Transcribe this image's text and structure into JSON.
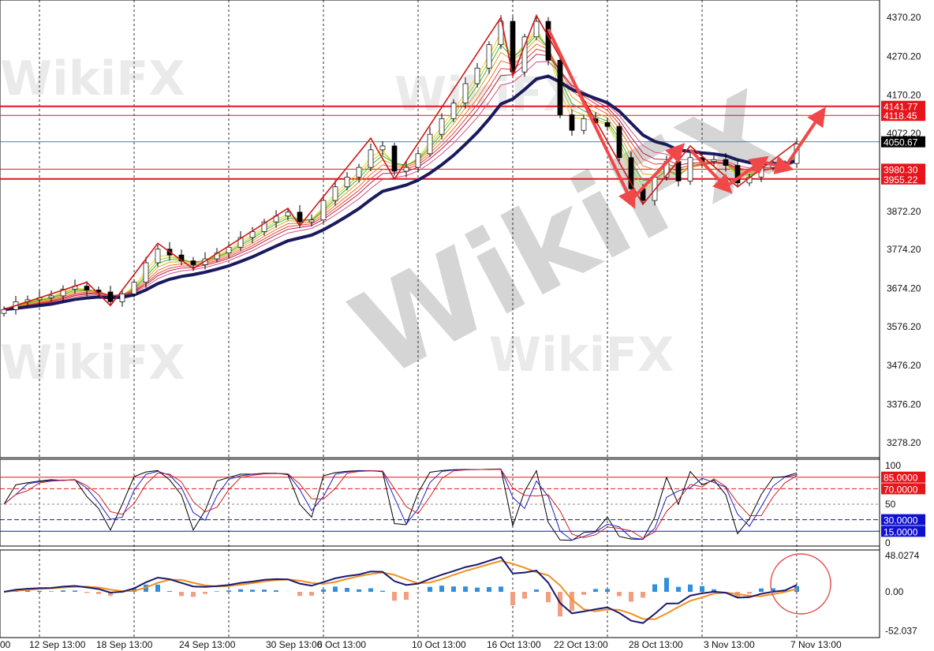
{
  "watermark": "WikiFX",
  "chart_data": [
    {
      "type": "candlestick",
      "panel": "price",
      "yticks": [
        "4370.20",
        "4270.20",
        "4170.20",
        "4072.20",
        "3872.20",
        "3774.20",
        "3674.20",
        "3576.20",
        "3476.20",
        "3376.20",
        "3278.20"
      ],
      "xticks": [
        "12 Sep 13:00",
        "18 Sep 13:00",
        "24 Sep 13:00",
        "30 Sep 13:00",
        "6 Oct 13:00",
        "10 Oct 13:00",
        "16 Oct 13:00",
        "22 Oct 13:00",
        "28 Oct 13:00",
        "3 Nov 13:00",
        "7 Nov 13:00"
      ],
      "close": [
        3620,
        3640,
        3645,
        3650,
        3655,
        3672,
        3680,
        3670,
        3665,
        3640,
        3660,
        3690,
        3740,
        3775,
        3760,
        3745,
        3735,
        3750,
        3765,
        3780,
        3805,
        3820,
        3845,
        3860,
        3870,
        3845,
        3850,
        3900,
        3935,
        3960,
        3985,
        4030,
        4040,
        3975,
        3985,
        4020,
        4070,
        4110,
        4150,
        4200,
        4240,
        4300,
        4360,
        4230,
        4320,
        4360,
        4260,
        4120,
        4080,
        4110,
        4100,
        4090,
        4010,
        3930,
        3900,
        3960,
        4000,
        3950,
        4010,
        4000,
        4005,
        3990,
        3945,
        3960,
        3985,
        3990,
        3995,
        4045
      ],
      "levels": [
        {
          "label": "4141.77",
          "value": 4141.77,
          "color": "#e8141c"
        },
        {
          "label": "4118.45",
          "value": 4118.45,
          "color": "#e8141c"
        },
        {
          "label": "3980.30",
          "value": 3980.3,
          "color": "#e8141c"
        },
        {
          "label": "3955.22",
          "value": 3955.22,
          "color": "#e8141c"
        }
      ],
      "current": {
        "label": "4050.67",
        "value": 4050.67,
        "color": "#000000"
      },
      "zigzag": [
        [
          0,
          3620
        ],
        [
          7,
          3690
        ],
        [
          9,
          3630
        ],
        [
          13,
          3790
        ],
        [
          16,
          3725
        ],
        [
          24,
          3880
        ],
        [
          25,
          3835
        ],
        [
          31,
          4060
        ],
        [
          33,
          3955
        ],
        [
          42,
          4370
        ],
        [
          43,
          4220
        ],
        [
          45,
          4375
        ],
        [
          54,
          3890
        ],
        [
          58,
          4040
        ],
        [
          62,
          3935
        ],
        [
          67,
          4050
        ]
      ],
      "arrows": [
        [
          [
            46,
            4340
          ],
          [
            53,
            3900
          ]
        ],
        [
          [
            53,
            3900
          ],
          [
            57,
            4030
          ]
        ],
        [
          [
            58,
            4030
          ],
          [
            61,
            3935
          ]
        ],
        [
          [
            61,
            3935
          ],
          [
            64,
            4000
          ]
        ],
        [
          [
            64,
            4000
          ],
          [
            66,
            3985
          ]
        ],
        [
          [
            66,
            3985
          ],
          [
            69,
            4120
          ]
        ]
      ]
    },
    {
      "type": "line",
      "panel": "stochastic",
      "ylim": [
        0,
        100
      ],
      "yticks": [
        "100",
        "50",
        "0"
      ],
      "levels": [
        {
          "label": "85.0000",
          "value": 85,
          "color": "#e8141c"
        },
        {
          "label": "70.0000",
          "value": 70,
          "color": "#e8141c"
        },
        {
          "label": "30.0000",
          "value": 30,
          "color": "#1010d0"
        },
        {
          "label": "15.0000",
          "value": 15,
          "color": "#1010d0"
        }
      ]
    },
    {
      "type": "bar",
      "panel": "macd",
      "yticks": [
        "48.0274",
        "0.00",
        "-52.037"
      ],
      "ylim": [
        -52.037,
        48.0274
      ]
    }
  ]
}
